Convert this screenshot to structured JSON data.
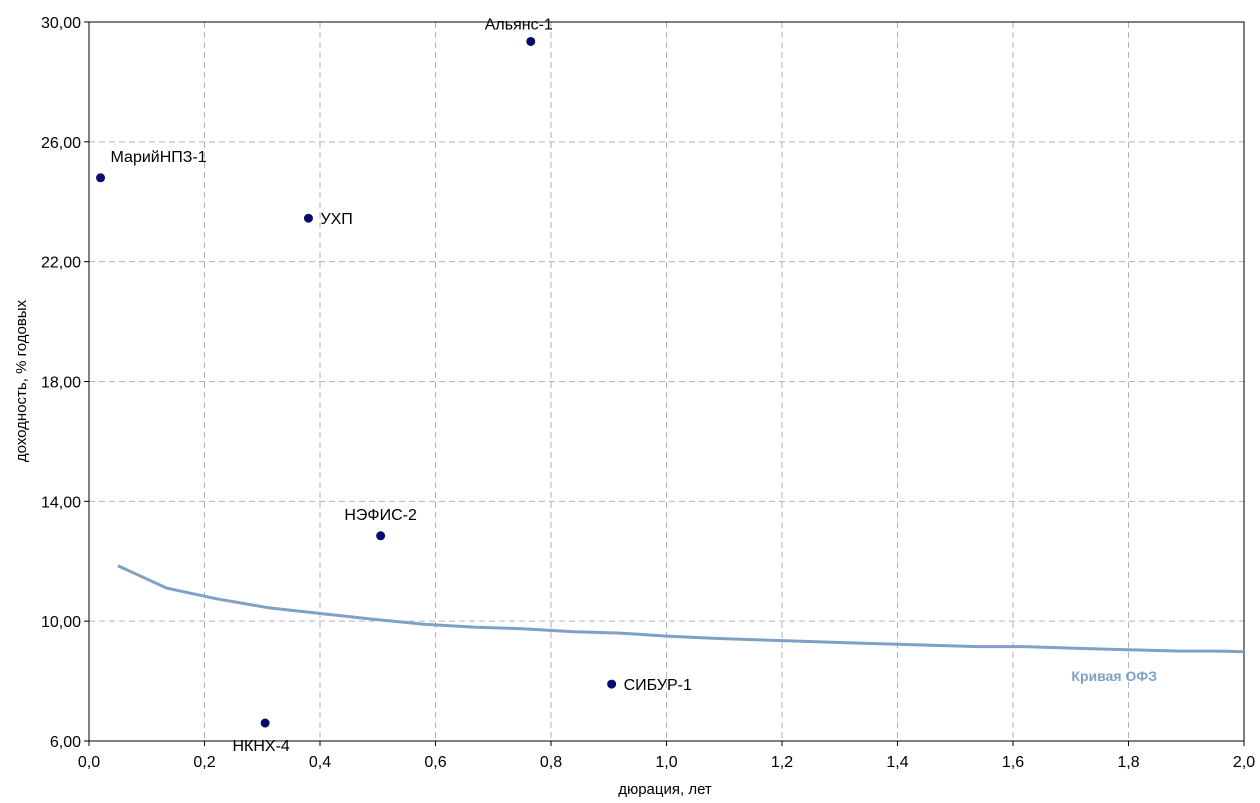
{
  "chart_data": {
    "type": "scatter",
    "xlabel": "дюрация, лет",
    "ylabel": "доходность, % годовых",
    "xlim": [
      0,
      2.0
    ],
    "ylim": [
      6,
      30
    ],
    "x_ticks": [
      0,
      0.2,
      0.4,
      0.6,
      0.8,
      1.0,
      1.2,
      1.4,
      1.6,
      1.8,
      2.0
    ],
    "x_tick_labels": [
      "0,0",
      "0,2",
      "0,4",
      "0,6",
      "0,8",
      "1,0",
      "1,2",
      "1,4",
      "1,6",
      "1,8",
      "2,0"
    ],
    "y_ticks": [
      6,
      10,
      14,
      18,
      22,
      26,
      30
    ],
    "y_tick_labels": [
      "6,00",
      "10,00",
      "14,00",
      "18,00",
      "22,00",
      "26,00",
      "30,00"
    ],
    "grid": true,
    "points": [
      {
        "label": "Альянс-1",
        "x": 0.765,
        "y": 29.35,
        "label_position": "above-left"
      },
      {
        "label": "МарийНПЗ-1",
        "x": 0.02,
        "y": 24.8,
        "label_position": "above-right"
      },
      {
        "label": "УХП",
        "x": 0.38,
        "y": 23.45,
        "label_position": "right"
      },
      {
        "label": "НЭФИС-2",
        "x": 0.505,
        "y": 12.85,
        "label_position": "above"
      },
      {
        "label": "СИБУР-1",
        "x": 0.905,
        "y": 7.9,
        "label_position": "right"
      },
      {
        "label": "НКНХ-4",
        "x": 0.305,
        "y": 6.6,
        "label_position": "below"
      }
    ],
    "series": [
      {
        "name": "Кривая ОФЗ",
        "type": "line",
        "x": [
          0.05,
          0.135,
          0.22,
          0.31,
          0.49,
          0.58,
          0.67,
          0.75,
          0.84,
          0.92,
          1.0,
          1.09,
          1.2,
          1.36,
          1.45,
          1.54,
          1.62,
          1.7,
          1.79,
          1.89,
          1.96,
          2.0
        ],
        "y": [
          11.85,
          11.1,
          10.75,
          10.45,
          10.07,
          9.9,
          9.8,
          9.75,
          9.65,
          9.6,
          9.5,
          9.42,
          9.35,
          9.25,
          9.2,
          9.15,
          9.15,
          9.1,
          9.05,
          9.0,
          9.0,
          8.98
        ]
      }
    ],
    "colors": {
      "points": "#0a0a6e",
      "curve": "#7fa1c6",
      "grid": "#b3b3b3",
      "axis": "#000000"
    }
  }
}
